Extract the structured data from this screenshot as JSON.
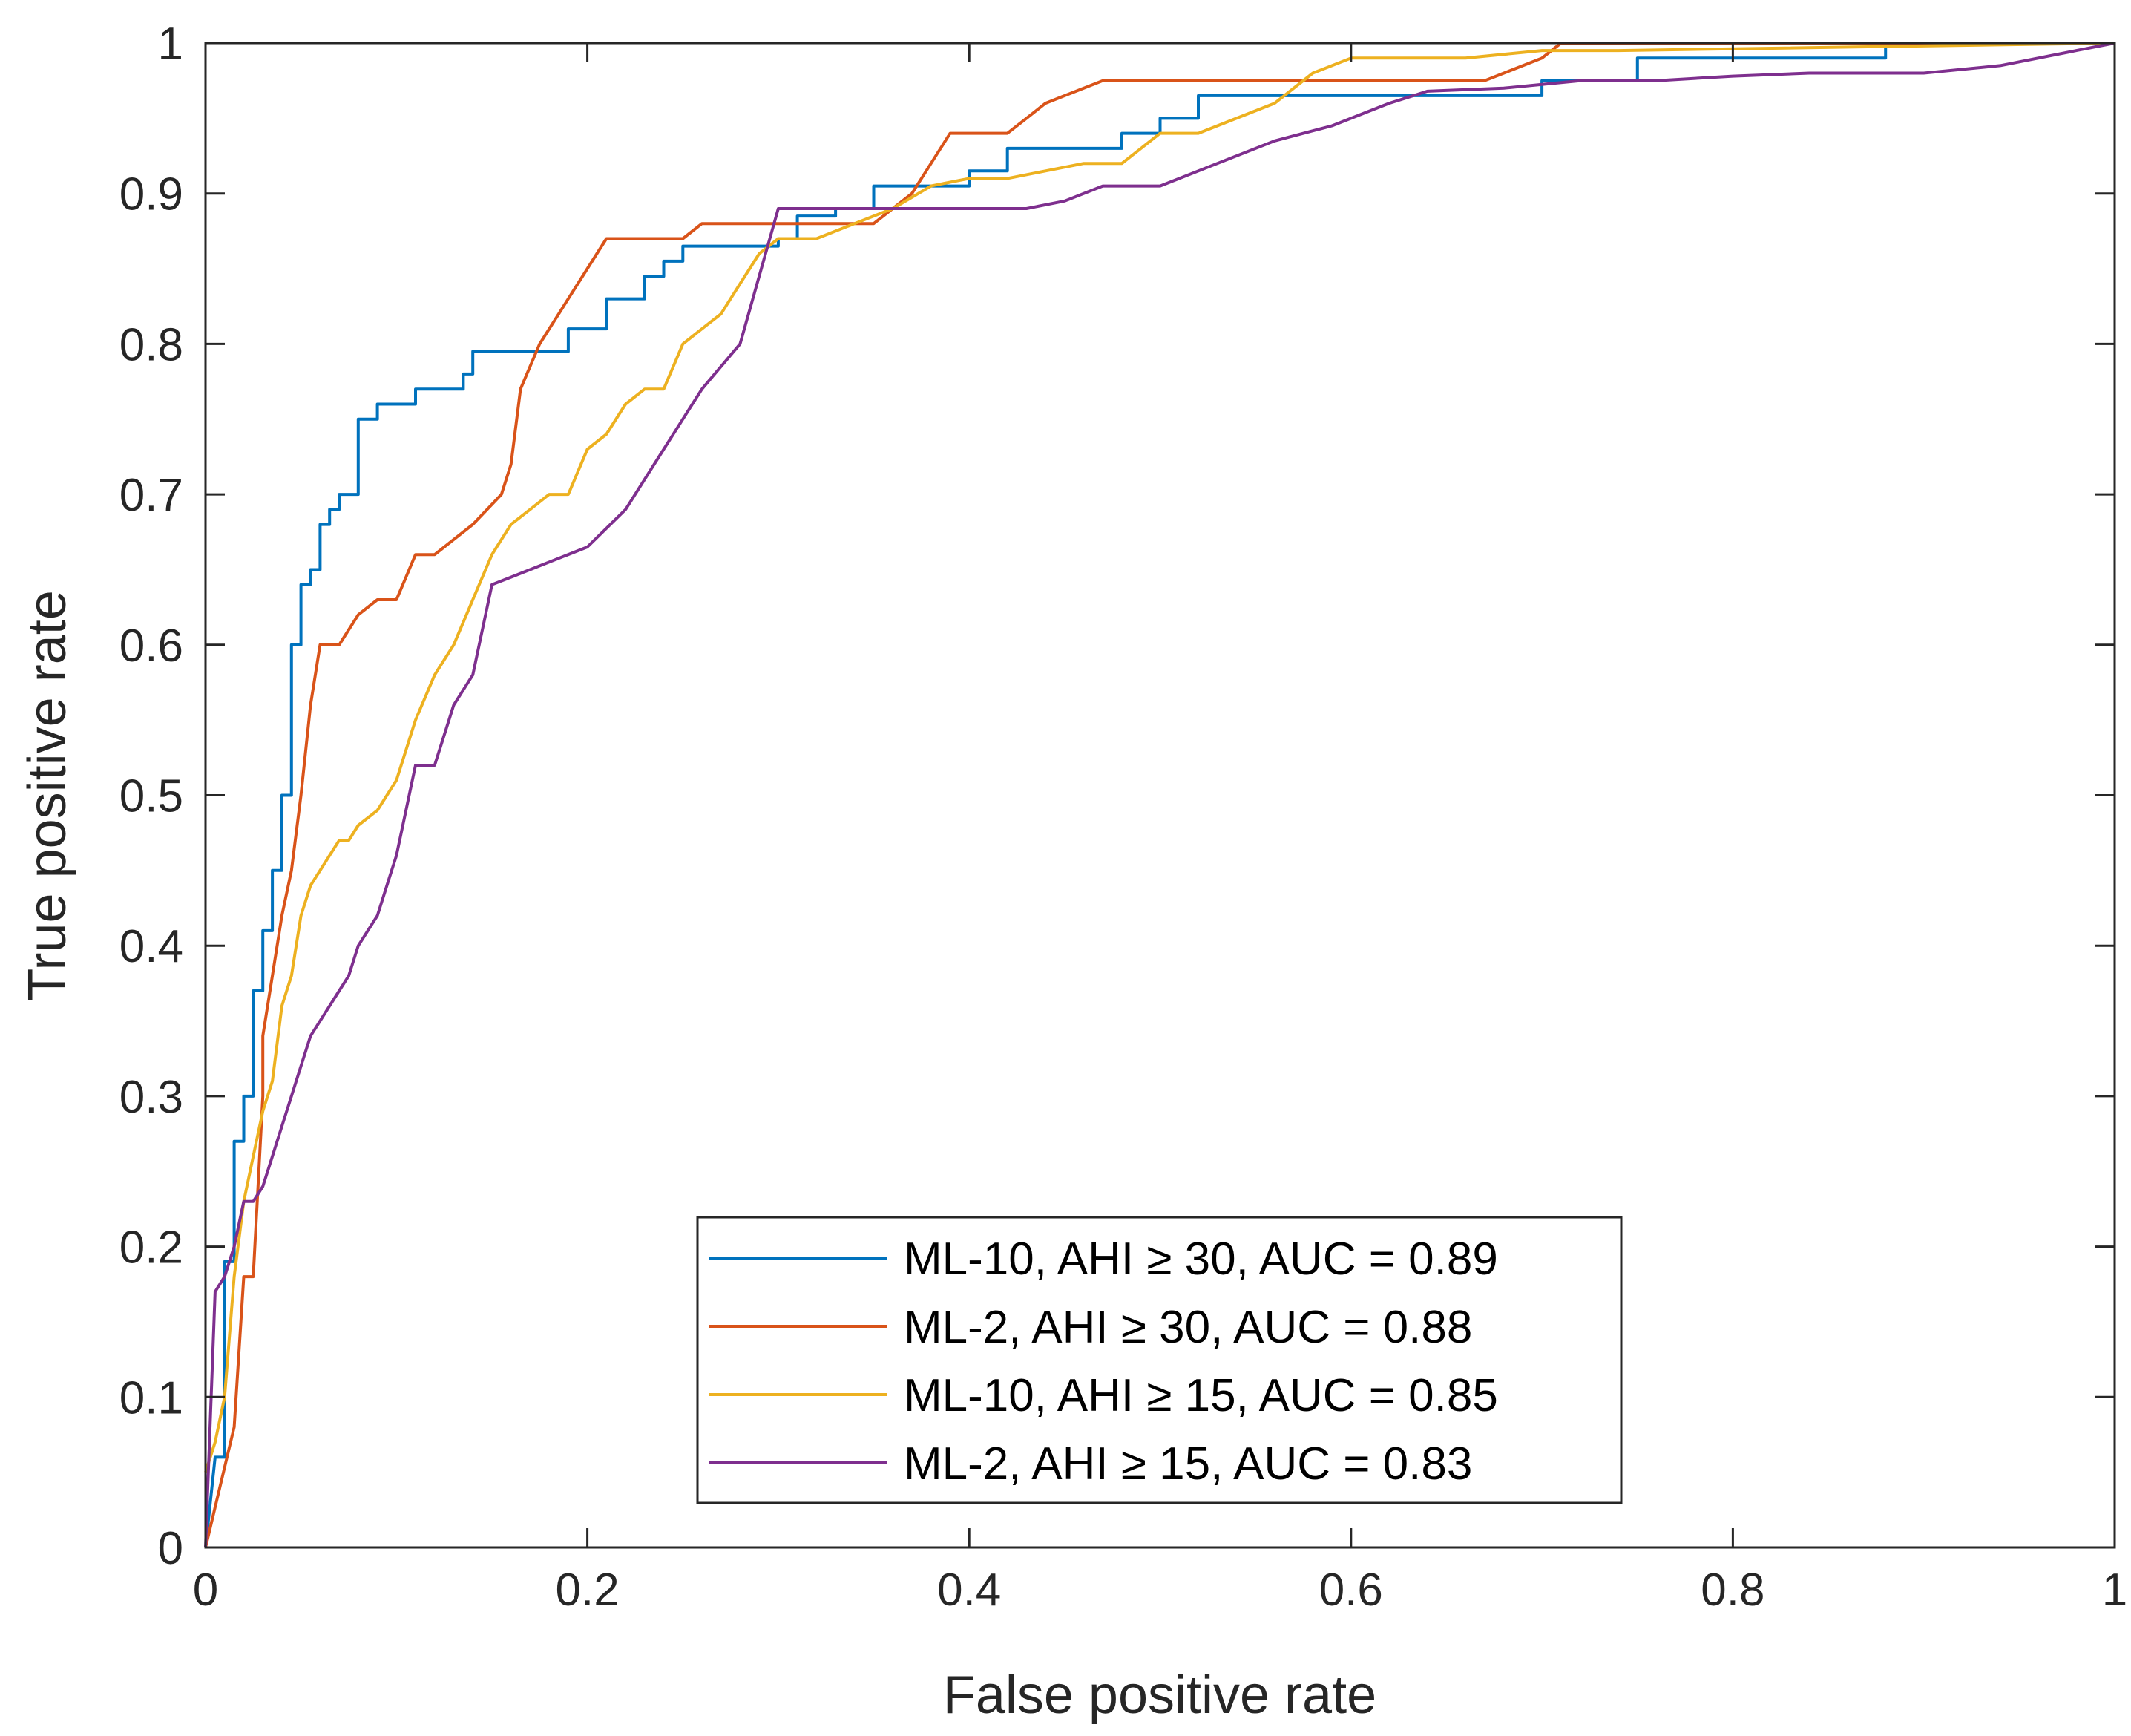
{
  "chart_data": {
    "type": "line",
    "title": "",
    "xlabel": "False positive rate",
    "ylabel": "True positive rate",
    "xlim": [
      0,
      1
    ],
    "ylim": [
      0,
      1
    ],
    "xticks": [
      "0",
      "0.2",
      "0.4",
      "0.6",
      "0.8",
      "1"
    ],
    "yticks": [
      "0",
      "0.1",
      "0.2",
      "0.3",
      "0.4",
      "0.5",
      "0.6",
      "0.7",
      "0.8",
      "0.9",
      "1"
    ],
    "grid": false,
    "legend_position": "bottom-center",
    "series": [
      {
        "name": "ML-10, AHI ≥ 30, AUC = 0.89",
        "color": "#0072BD",
        "x": [
          0,
          0.005,
          0.01,
          0.01,
          0.015,
          0.015,
          0.02,
          0.02,
          0.025,
          0.025,
          0.03,
          0.03,
          0.035,
          0.035,
          0.04,
          0.04,
          0.045,
          0.045,
          0.05,
          0.05,
          0.055,
          0.055,
          0.06,
          0.06,
          0.065,
          0.065,
          0.07,
          0.07,
          0.08,
          0.08,
          0.09,
          0.09,
          0.11,
          0.11,
          0.135,
          0.135,
          0.14,
          0.14,
          0.19,
          0.19,
          0.21,
          0.21,
          0.23,
          0.23,
          0.24,
          0.24,
          0.25,
          0.25,
          0.3,
          0.3,
          0.31,
          0.31,
          0.33,
          0.33,
          0.35,
          0.35,
          0.37,
          0.37,
          0.4,
          0.4,
          0.42,
          0.42,
          0.45,
          0.45,
          0.48,
          0.48,
          0.5,
          0.5,
          0.52,
          0.52,
          0.54,
          0.54,
          0.6,
          0.6,
          0.7,
          0.7,
          0.75,
          0.75,
          0.88,
          0.88,
          1
        ],
        "y": [
          0,
          0.06,
          0.06,
          0.19,
          0.19,
          0.27,
          0.27,
          0.3,
          0.3,
          0.37,
          0.37,
          0.41,
          0.41,
          0.45,
          0.45,
          0.5,
          0.5,
          0.6,
          0.6,
          0.64,
          0.64,
          0.65,
          0.65,
          0.68,
          0.68,
          0.69,
          0.69,
          0.7,
          0.7,
          0.75,
          0.75,
          0.76,
          0.76,
          0.77,
          0.77,
          0.78,
          0.78,
          0.795,
          0.795,
          0.81,
          0.81,
          0.83,
          0.83,
          0.845,
          0.845,
          0.855,
          0.855,
          0.865,
          0.865,
          0.87,
          0.87,
          0.885,
          0.885,
          0.89,
          0.89,
          0.905,
          0.905,
          0.905,
          0.905,
          0.915,
          0.915,
          0.93,
          0.93,
          0.93,
          0.93,
          0.94,
          0.94,
          0.95,
          0.95,
          0.965,
          0.965,
          0.965,
          0.965,
          0.965,
          0.965,
          0.975,
          0.975,
          0.99,
          0.99,
          1.0,
          1.0
        ]
      },
      {
        "name": "ML-2, AHI ≥ 30, AUC = 0.88",
        "color": "#D95319",
        "x": [
          0,
          0.015,
          0.02,
          0.02,
          0.025,
          0.03,
          0.03,
          0.035,
          0.04,
          0.045,
          0.05,
          0.055,
          0.06,
          0.065,
          0.07,
          0.075,
          0.08,
          0.09,
          0.1,
          0.11,
          0.11,
          0.12,
          0.14,
          0.155,
          0.16,
          0.165,
          0.175,
          0.185,
          0.2,
          0.21,
          0.25,
          0.26,
          0.3,
          0.33,
          0.35,
          0.37,
          0.39,
          0.42,
          0.43,
          0.44,
          0.45,
          0.47,
          0.6,
          0.67,
          0.7,
          0.71,
          1
        ],
        "y": [
          0,
          0.08,
          0.18,
          0.18,
          0.18,
          0.3,
          0.34,
          0.38,
          0.42,
          0.45,
          0.5,
          0.56,
          0.6,
          0.6,
          0.6,
          0.61,
          0.62,
          0.63,
          0.63,
          0.66,
          0.66,
          0.66,
          0.68,
          0.7,
          0.72,
          0.77,
          0.8,
          0.82,
          0.85,
          0.87,
          0.87,
          0.88,
          0.88,
          0.88,
          0.88,
          0.9,
          0.94,
          0.94,
          0.95,
          0.96,
          0.965,
          0.975,
          0.975,
          0.975,
          0.99,
          1.0,
          1.0
        ]
      },
      {
        "name": "ML-10, AHI ≥ 15, AUC = 0.85",
        "color": "#EDB120",
        "x": [
          0,
          0.005,
          0.01,
          0.015,
          0.02,
          0.025,
          0.03,
          0.035,
          0.04,
          0.045,
          0.05,
          0.055,
          0.06,
          0.065,
          0.07,
          0.075,
          0.08,
          0.09,
          0.1,
          0.11,
          0.12,
          0.13,
          0.14,
          0.15,
          0.16,
          0.17,
          0.18,
          0.19,
          0.2,
          0.21,
          0.22,
          0.23,
          0.24,
          0.25,
          0.26,
          0.27,
          0.28,
          0.29,
          0.3,
          0.32,
          0.34,
          0.36,
          0.38,
          0.4,
          0.42,
          0.44,
          0.46,
          0.48,
          0.5,
          0.52,
          0.54,
          0.56,
          0.58,
          0.6,
          0.62,
          0.66,
          0.7,
          0.74,
          1
        ],
        "y": [
          0.05,
          0.07,
          0.1,
          0.18,
          0.23,
          0.26,
          0.29,
          0.31,
          0.36,
          0.38,
          0.42,
          0.44,
          0.45,
          0.46,
          0.47,
          0.47,
          0.48,
          0.49,
          0.51,
          0.55,
          0.58,
          0.6,
          0.63,
          0.66,
          0.68,
          0.69,
          0.7,
          0.7,
          0.73,
          0.74,
          0.76,
          0.77,
          0.77,
          0.8,
          0.81,
          0.82,
          0.84,
          0.86,
          0.87,
          0.87,
          0.88,
          0.89,
          0.905,
          0.91,
          0.91,
          0.915,
          0.92,
          0.92,
          0.94,
          0.94,
          0.95,
          0.96,
          0.98,
          0.99,
          0.99,
          0.99,
          0.995,
          0.995,
          1.0
        ]
      },
      {
        "name": "ML-2, AHI ≥ 15, AUC = 0.83",
        "color": "#7E2F8E",
        "x": [
          0,
          0.005,
          0.01,
          0.015,
          0.02,
          0.025,
          0.03,
          0.035,
          0.04,
          0.045,
          0.05,
          0.055,
          0.06,
          0.065,
          0.07,
          0.075,
          0.08,
          0.09,
          0.095,
          0.1,
          0.11,
          0.12,
          0.13,
          0.14,
          0.15,
          0.16,
          0.18,
          0.2,
          0.22,
          0.24,
          0.26,
          0.28,
          0.3,
          0.32,
          0.34,
          0.36,
          0.38,
          0.4,
          0.43,
          0.45,
          0.47,
          0.5,
          0.53,
          0.56,
          0.59,
          0.62,
          0.64,
          0.68,
          0.72,
          0.76,
          0.8,
          0.84,
          0.88,
          0.9,
          0.94,
          0.98,
          1
        ],
        "y": [
          0,
          0.17,
          0.18,
          0.2,
          0.23,
          0.23,
          0.24,
          0.26,
          0.28,
          0.3,
          0.32,
          0.34,
          0.35,
          0.36,
          0.37,
          0.38,
          0.4,
          0.42,
          0.44,
          0.46,
          0.52,
          0.52,
          0.56,
          0.58,
          0.64,
          0.645,
          0.655,
          0.665,
          0.69,
          0.73,
          0.77,
          0.8,
          0.89,
          0.89,
          0.89,
          0.89,
          0.89,
          0.89,
          0.89,
          0.895,
          0.905,
          0.905,
          0.92,
          0.935,
          0.945,
          0.96,
          0.968,
          0.97,
          0.975,
          0.975,
          0.978,
          0.98,
          0.98,
          0.98,
          0.985,
          0.995,
          1.0
        ]
      }
    ]
  }
}
